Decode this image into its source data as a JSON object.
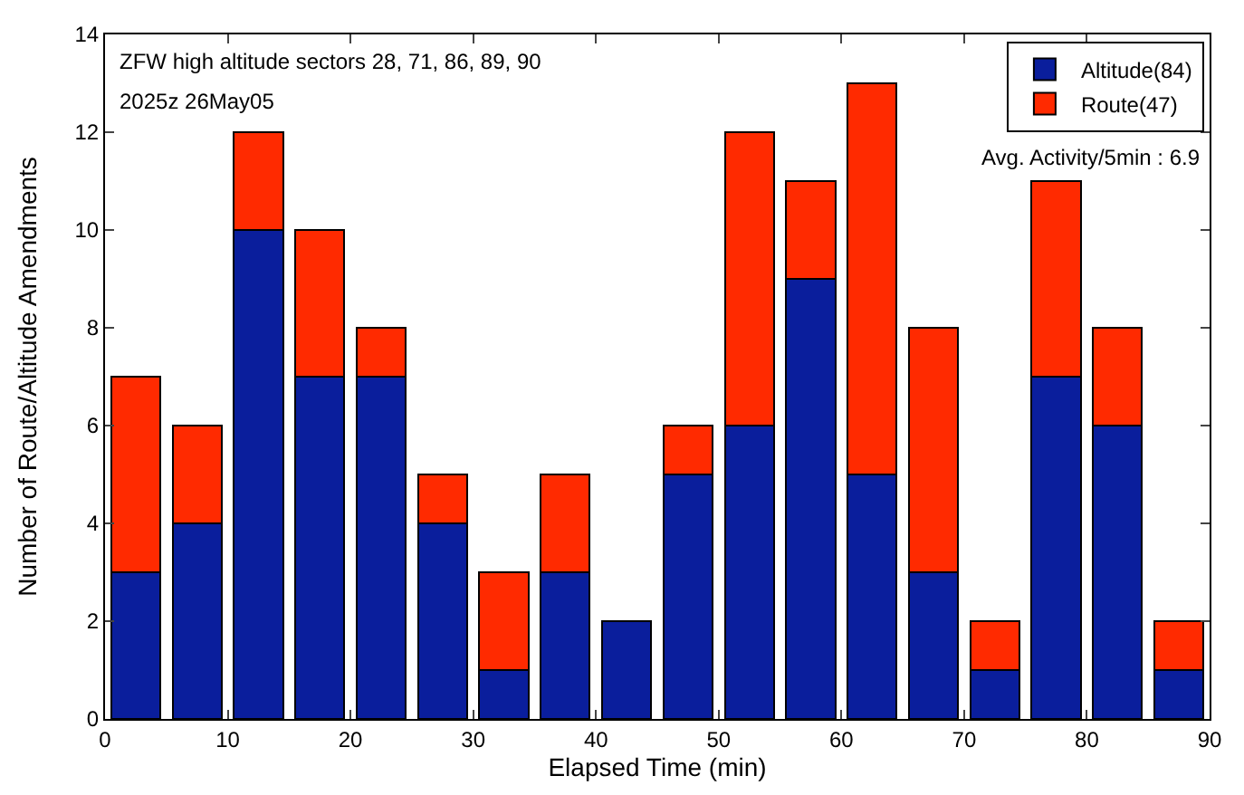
{
  "chart_data": {
    "type": "bar",
    "stacked": true,
    "x": [
      2.5,
      7.5,
      12.5,
      17.5,
      22.5,
      27.5,
      32.5,
      37.5,
      42.5,
      47.5,
      52.5,
      57.5,
      62.5,
      67.5,
      72.5,
      77.5,
      82.5,
      87.5
    ],
    "series": [
      {
        "name": "Altitude(84)",
        "color": "#0a1e9c",
        "values": [
          3,
          4,
          10,
          7,
          7,
          4,
          1,
          3,
          2,
          5,
          6,
          9,
          5,
          3,
          1,
          7,
          6,
          1
        ]
      },
      {
        "name": "Route(47)",
        "color": "#ff2a00",
        "values": [
          4,
          2,
          2,
          3,
          1,
          1,
          2,
          2,
          0,
          1,
          6,
          2,
          8,
          5,
          1,
          4,
          2,
          1
        ]
      }
    ],
    "xlabel": "Elapsed Time (min)",
    "ylabel": "Number of Route/Altitude Amendments",
    "xlim": [
      0,
      90
    ],
    "xticks": [
      0,
      10,
      20,
      30,
      40,
      50,
      60,
      70,
      80,
      90
    ],
    "ylim": [
      0,
      14
    ],
    "yticks": [
      0,
      2,
      4,
      6,
      8,
      10,
      12,
      14
    ],
    "grid": false,
    "legend": "top right",
    "annotations": [
      "ZFW high altitude sectors 28, 71, 86, 89, 90",
      "2025z 26May05",
      "Avg. Activity/5min : 6.9"
    ]
  }
}
